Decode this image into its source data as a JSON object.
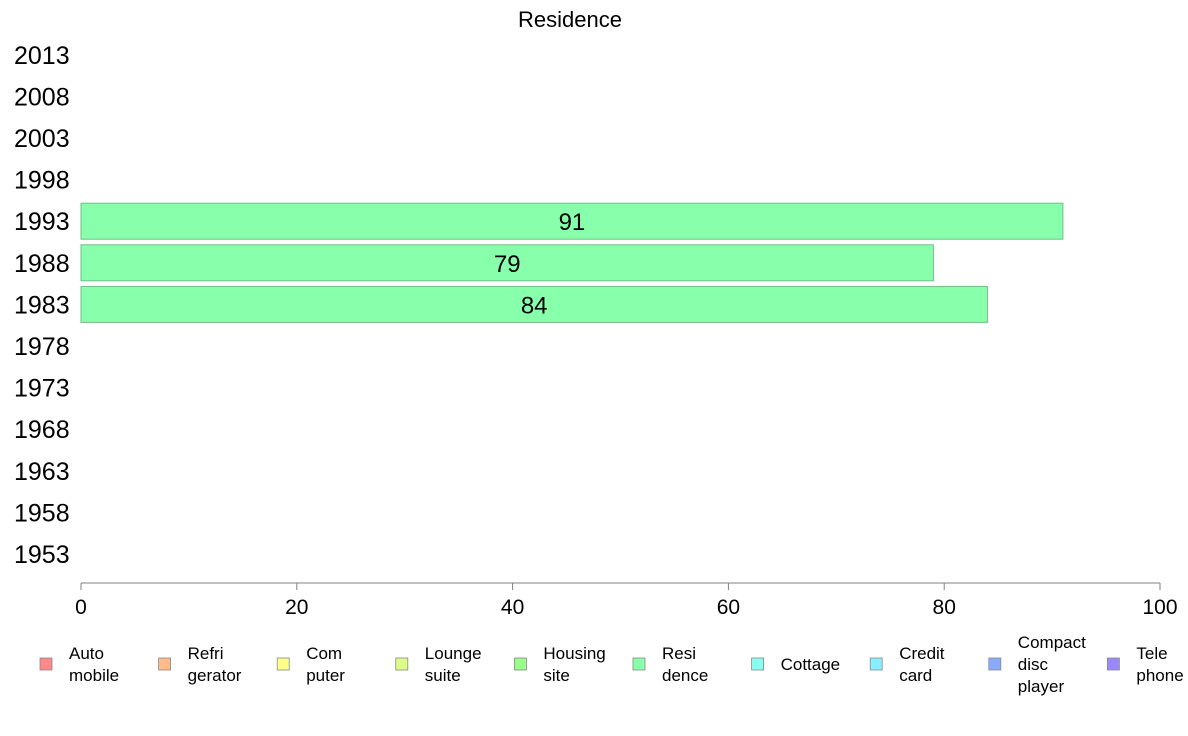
{
  "chart_data": {
    "type": "bar",
    "orientation": "horizontal",
    "title": "Residence",
    "categories": [
      "2013",
      "2008",
      "2003",
      "1998",
      "1993",
      "1988",
      "1983",
      "1978",
      "1973",
      "1968",
      "1963",
      "1958",
      "1953"
    ],
    "series": [
      {
        "name": "Residence",
        "color": "#88ffaa",
        "values": [
          null,
          null,
          null,
          null,
          91,
          79,
          84,
          null,
          null,
          null,
          null,
          null,
          null
        ]
      }
    ],
    "xlim": [
      0,
      100
    ],
    "xticks": [
      0,
      20,
      40,
      60,
      80,
      100
    ],
    "grid": false,
    "legend_position": "bottom",
    "legend": [
      {
        "lines": [
          "Auto",
          "mobile"
        ],
        "color": "#ff8888"
      },
      {
        "lines": [
          "Refri",
          "gerator"
        ],
        "color": "#ffbb88"
      },
      {
        "lines": [
          "Com",
          "puter"
        ],
        "color": "#ffff88"
      },
      {
        "lines": [
          "Lounge",
          "suite"
        ],
        "color": "#ddff88"
      },
      {
        "lines": [
          "Housing",
          "site"
        ],
        "color": "#99ff88"
      },
      {
        "lines": [
          "Resi",
          "dence"
        ],
        "color": "#88ffaa"
      },
      {
        "lines": [
          "Cottage"
        ],
        "color": "#88ffee"
      },
      {
        "lines": [
          "Credit",
          "card"
        ],
        "color": "#88eeff"
      },
      {
        "lines": [
          "Compact",
          "disc",
          "player"
        ],
        "color": "#88aaff"
      },
      {
        "lines": [
          "Tele",
          "phone"
        ],
        "color": "#9988ff"
      }
    ]
  }
}
